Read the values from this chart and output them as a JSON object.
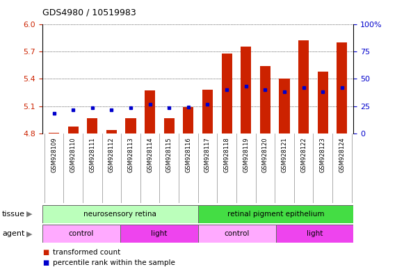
{
  "title": "GDS4980 / 10519983",
  "samples": [
    "GSM928109",
    "GSM928110",
    "GSM928111",
    "GSM928112",
    "GSM928113",
    "GSM928114",
    "GSM928115",
    "GSM928116",
    "GSM928117",
    "GSM928118",
    "GSM928119",
    "GSM928120",
    "GSM928121",
    "GSM928122",
    "GSM928123",
    "GSM928124"
  ],
  "bar_values": [
    4.81,
    4.88,
    4.97,
    4.84,
    4.97,
    5.27,
    4.97,
    5.09,
    5.28,
    5.68,
    5.75,
    5.54,
    5.4,
    5.82,
    5.48,
    5.8
  ],
  "blue_dot_values": [
    5.02,
    5.06,
    5.08,
    5.06,
    5.08,
    5.12,
    5.08,
    5.09,
    5.12,
    5.28,
    5.32,
    5.28,
    5.26,
    5.3,
    5.26,
    5.3
  ],
  "bar_color": "#cc2200",
  "dot_color": "#0000cc",
  "ymin": 4.8,
  "ymax": 6.0,
  "yticks": [
    4.8,
    5.1,
    5.4,
    5.7,
    6.0
  ],
  "right_yticks": [
    0,
    25,
    50,
    75,
    100
  ],
  "tissue_groups": [
    {
      "label": "neurosensory retina",
      "start": 0,
      "end": 8,
      "color": "#bbffbb"
    },
    {
      "label": "retinal pigment epithelium",
      "start": 8,
      "end": 16,
      "color": "#44dd44"
    }
  ],
  "agent_groups": [
    {
      "label": "control",
      "start": 0,
      "end": 4,
      "color": "#ffaaff"
    },
    {
      "label": "light",
      "start": 4,
      "end": 8,
      "color": "#ee44ee"
    },
    {
      "label": "control",
      "start": 8,
      "end": 12,
      "color": "#ffaaff"
    },
    {
      "label": "light",
      "start": 12,
      "end": 16,
      "color": "#ee44ee"
    }
  ],
  "legend_items": [
    {
      "label": "transformed count",
      "color": "#cc2200"
    },
    {
      "label": "percentile rank within the sample",
      "color": "#0000cc"
    }
  ],
  "tissue_label": "tissue",
  "agent_label": "agent",
  "bar_width": 0.55,
  "bg_color": "#ffffff",
  "grid_color": "#000000",
  "tick_label_color_left": "#cc2200",
  "tick_label_color_right": "#0000cc",
  "xtick_bg_color": "#cccccc"
}
